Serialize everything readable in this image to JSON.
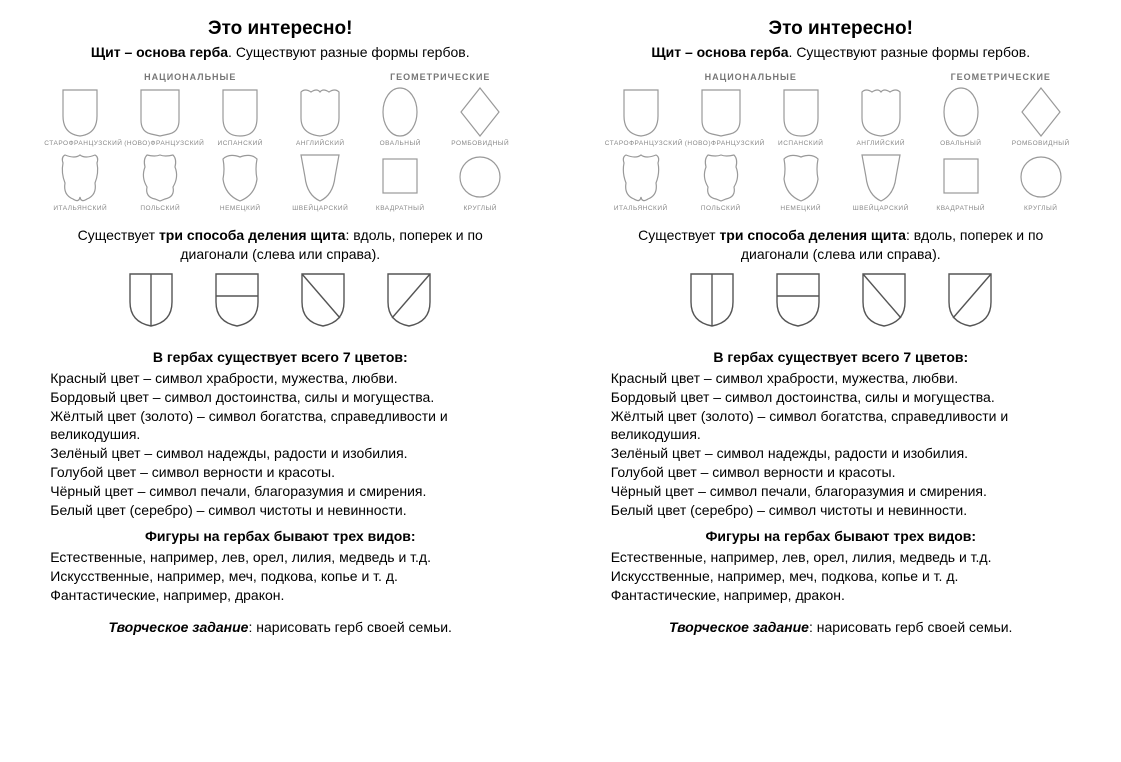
{
  "title": "Это интересно!",
  "subtitle_bold": "Щит – основа герба",
  "subtitle_rest": ". Существуют разные формы гербов.",
  "group_labels": {
    "national": "НАЦИОНАЛЬНЫЕ",
    "geometric": "ГЕОМЕТРИЧЕСКИЕ"
  },
  "shapes_row1": [
    {
      "name": "starofr",
      "label": "СТАРОФРАНЦУЗСКИЙ"
    },
    {
      "name": "novofr",
      "label": "(НОВО)ФРАНЦУЗСКИЙ"
    },
    {
      "name": "isp",
      "label": "ИСПАНСКИЙ"
    },
    {
      "name": "angl",
      "label": "АНГЛИЙСКИЙ"
    },
    {
      "name": "oval",
      "label": "ОВАЛЬНЫЙ"
    },
    {
      "name": "romb",
      "label": "РОМБОВИДНЫЙ"
    }
  ],
  "shapes_row2": [
    {
      "name": "ital",
      "label": "ИТАЛЬЯНСКИЙ"
    },
    {
      "name": "pol",
      "label": "ПОЛЬСКИЙ"
    },
    {
      "name": "nem",
      "label": "НЕМЕЦКИЙ"
    },
    {
      "name": "swiss",
      "label": "ШВЕЙЦАРСКИЙ"
    },
    {
      "name": "sq",
      "label": "КВАДРАТНЫЙ"
    },
    {
      "name": "circ",
      "label": "КРУГЛЫЙ"
    }
  ],
  "division_pre": "Существует ",
  "division_bold": "три способа деления щита",
  "division_post": ": вдоль, поперек и по диагонали (слева или справа).",
  "colors_h": "В гербах существует всего 7 цветов:",
  "colors": [
    "Красный цвет  – символ храбрости, мужества, любви.",
    "Бордовый цвет – символ достоинства, силы и могущества.",
    "Жёлтый цвет (золото) – символ богатства, справедливости и великодушия.",
    "Зелёный цвет  – символ надежды, радости и изобилия.",
    "Голубой цвет – символ верности и красоты.",
    "Чёрный цвет  – символ печали, благоразумия и смирения.",
    "Белый цвет (серебро) – символ чистоты и невинности."
  ],
  "figures_h": "Фигуры на гербах бывают трех видов:",
  "figures": [
    "Естественные, например, лев, орел, лилия, медведь и т.д.",
    "Искусственные, например, меч, подкова, копье и т. д.",
    "Фантастические, например, дракон."
  ],
  "creative_bold": "Творческое задание",
  "creative_rest": ": нарисовать герб своей семьи.",
  "stroke": "#999999",
  "stroke_dark": "#555555"
}
